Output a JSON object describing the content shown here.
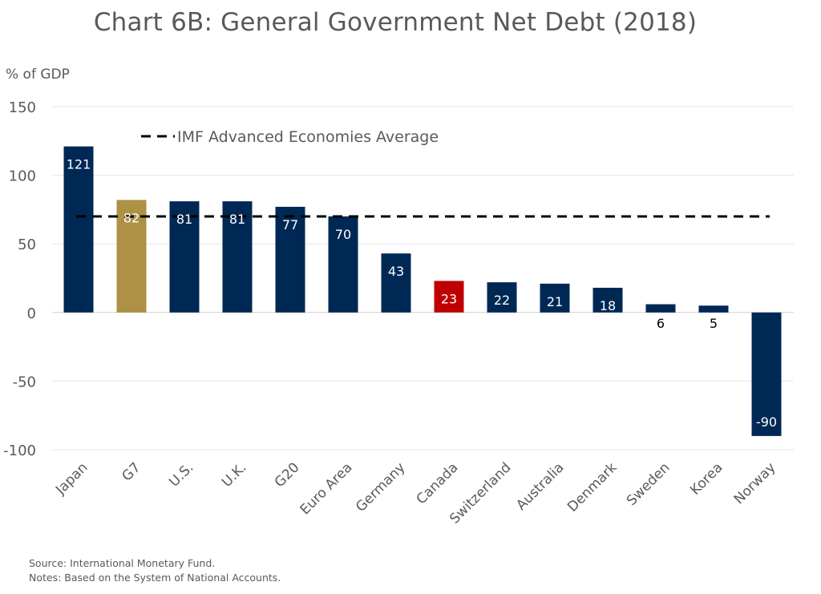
{
  "chart_data": {
    "type": "bar",
    "title": "Chart 6B: General Government Net Debt (2018)",
    "ylabel": "% of GDP",
    "xlabel": "",
    "ylim": [
      -100,
      150
    ],
    "yticks": [
      150,
      100,
      50,
      0,
      -50,
      -100
    ],
    "grid": true,
    "categories": [
      "Japan",
      "G7",
      "U.S.",
      "U.K.",
      "G20",
      "Euro Area",
      "Germany",
      "Canada",
      "Switzerland",
      "Australia",
      "Denmark",
      "Sweden",
      "Korea",
      "Norway"
    ],
    "values": [
      121,
      82,
      81,
      81,
      77,
      70,
      43,
      23,
      22,
      21,
      18,
      6,
      5,
      -90
    ],
    "data_labels": [
      "121",
      "82",
      "81",
      "81",
      "77",
      "70",
      "43",
      "23",
      "22",
      "21",
      "18",
      "6",
      "5",
      "-90"
    ],
    "bar_colors": [
      "#002855",
      "#AD9144",
      "#002855",
      "#002855",
      "#002855",
      "#002855",
      "#002855",
      "#C00000",
      "#002855",
      "#002855",
      "#002855",
      "#002855",
      "#002855",
      "#002855"
    ],
    "reference_line": {
      "name": "IMF Advanced Economies Average",
      "value": 70,
      "style": "dashed",
      "color": "#000000"
    },
    "legend": {
      "entries": [
        "IMF Advanced Economies Average"
      ],
      "placement": "top-left"
    }
  },
  "footer": {
    "source": "Source: International Monetary Fund.",
    "notes": "Notes: Based on the System of National Accounts."
  }
}
